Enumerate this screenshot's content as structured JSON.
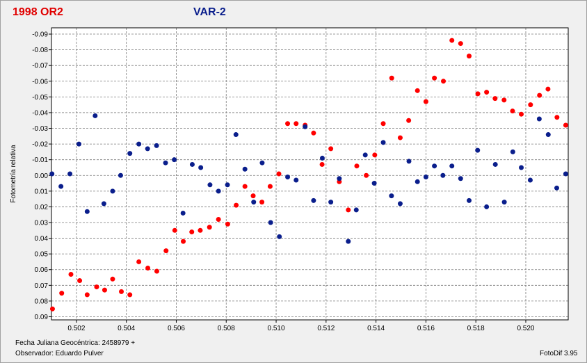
{
  "header": {
    "title_left": "1998 OR2",
    "title_right": "VAR-2"
  },
  "footer": {
    "jd_label": "Fecha Juliana Geocéntrica: 2458979 +",
    "observer": "Observador: Eduardo Pulver",
    "software": "FotoDif 3.95"
  },
  "chart_data": {
    "type": "scatter",
    "ylabel": "Fotometría relativa",
    "xlabel": "",
    "xlim": [
      0.501,
      0.5217
    ],
    "ylim": [
      0.092,
      -0.094
    ],
    "y_inverted": true,
    "grid": true,
    "x_ticks": [
      0.502,
      0.504,
      0.506,
      0.508,
      0.51,
      0.512,
      0.514,
      0.516,
      0.518,
      0.52
    ],
    "x_tick_labels": [
      "0.502",
      "0.504",
      "0.506",
      "0.508",
      "0.510",
      "0.512",
      "0.514",
      "0.516",
      "0.518",
      "0.520"
    ],
    "y_ticks": [
      -0.09,
      -0.08,
      -0.07,
      -0.06,
      -0.05,
      -0.04,
      -0.03,
      -0.02,
      -0.01,
      0.0,
      0.01,
      0.02,
      0.03,
      0.04,
      0.05,
      0.06,
      0.07,
      0.08,
      0.09
    ],
    "y_tick_labels": [
      "-0.09",
      "-0.08",
      "-0.07",
      "-0.06",
      "-0.05",
      "-0.04",
      "-0.03",
      "-0.02",
      "-0.01",
      "0.00",
      "0.01",
      "0.02",
      "0.03",
      "0.04",
      "0.05",
      "0.06",
      "0.07",
      "0.08",
      "0.09"
    ],
    "series": [
      {
        "color": "#ff0000",
        "points": [
          [
            0.50104,
            0.085
          ],
          [
            0.50141,
            0.075
          ],
          [
            0.50178,
            0.063
          ],
          [
            0.50213,
            0.067
          ],
          [
            0.50243,
            0.076
          ],
          [
            0.50281,
            0.071
          ],
          [
            0.50313,
            0.073
          ],
          [
            0.50345,
            0.066
          ],
          [
            0.5038,
            0.074
          ],
          [
            0.50414,
            0.076
          ],
          [
            0.5045,
            0.055
          ],
          [
            0.50486,
            0.059
          ],
          [
            0.50522,
            0.061
          ],
          [
            0.50559,
            0.048
          ],
          [
            0.50594,
            0.035
          ],
          [
            0.50628,
            0.042
          ],
          [
            0.50662,
            0.036
          ],
          [
            0.50696,
            0.035
          ],
          [
            0.50733,
            0.033
          ],
          [
            0.50769,
            0.028
          ],
          [
            0.50806,
            0.031
          ],
          [
            0.5084,
            0.019
          ],
          [
            0.50875,
            0.007
          ],
          [
            0.50908,
            0.013
          ],
          [
            0.50943,
            0.017
          ],
          [
            0.50976,
            0.007
          ],
          [
            0.51011,
            -0.001
          ],
          [
            0.51046,
            -0.033
          ],
          [
            0.5108,
            -0.033
          ],
          [
            0.51116,
            -0.032
          ],
          [
            0.5115,
            -0.027
          ],
          [
            0.51184,
            -0.007
          ],
          [
            0.51219,
            -0.017
          ],
          [
            0.51253,
            0.004
          ],
          [
            0.51289,
            0.022
          ],
          [
            0.51323,
            -0.006
          ],
          [
            0.51361,
            0.0
          ],
          [
            0.51395,
            -0.013
          ],
          [
            0.51429,
            -0.033
          ],
          [
            0.51463,
            -0.062
          ],
          [
            0.51497,
            -0.024
          ],
          [
            0.51531,
            -0.035
          ],
          [
            0.51566,
            -0.054
          ],
          [
            0.516,
            -0.047
          ],
          [
            0.51634,
            -0.062
          ],
          [
            0.5167,
            -0.06
          ],
          [
            0.51704,
            -0.086
          ],
          [
            0.51739,
            -0.084
          ],
          [
            0.51773,
            -0.076
          ],
          [
            0.51808,
            -0.052
          ],
          [
            0.51843,
            -0.053
          ],
          [
            0.51877,
            -0.049
          ],
          [
            0.51913,
            -0.048
          ],
          [
            0.51947,
            -0.041
          ],
          [
            0.51982,
            -0.039
          ],
          [
            0.52019,
            -0.045
          ],
          [
            0.52055,
            -0.051
          ],
          [
            0.52089,
            -0.055
          ],
          [
            0.52125,
            -0.037
          ],
          [
            0.5216,
            -0.032
          ]
        ]
      },
      {
        "color": "#0a1e8c",
        "points": [
          [
            0.50102,
            -0.001
          ],
          [
            0.50138,
            0.007
          ],
          [
            0.50174,
            -0.001
          ],
          [
            0.5021,
            -0.02
          ],
          [
            0.50243,
            0.023
          ],
          [
            0.50275,
            -0.038
          ],
          [
            0.5031,
            0.018
          ],
          [
            0.50345,
            0.01
          ],
          [
            0.50377,
            0.0
          ],
          [
            0.50414,
            -0.014
          ],
          [
            0.5045,
            -0.02
          ],
          [
            0.50485,
            -0.017
          ],
          [
            0.50521,
            -0.019
          ],
          [
            0.50557,
            -0.008
          ],
          [
            0.50592,
            -0.01
          ],
          [
            0.50627,
            0.024
          ],
          [
            0.50664,
            -0.007
          ],
          [
            0.50698,
            -0.005
          ],
          [
            0.50735,
            0.006
          ],
          [
            0.50769,
            0.01
          ],
          [
            0.50805,
            0.006
          ],
          [
            0.50839,
            -0.026
          ],
          [
            0.50875,
            -0.004
          ],
          [
            0.5091,
            0.017
          ],
          [
            0.50944,
            -0.008
          ],
          [
            0.50978,
            0.03
          ],
          [
            0.51013,
            0.039
          ],
          [
            0.51046,
            0.001
          ],
          [
            0.5108,
            0.003
          ],
          [
            0.51116,
            -0.031
          ],
          [
            0.5115,
            0.016
          ],
          [
            0.51185,
            -0.011
          ],
          [
            0.51219,
            0.017
          ],
          [
            0.51253,
            0.002
          ],
          [
            0.51289,
            0.042
          ],
          [
            0.51321,
            0.022
          ],
          [
            0.51357,
            -0.013
          ],
          [
            0.51393,
            0.005
          ],
          [
            0.51429,
            -0.021
          ],
          [
            0.51462,
            0.013
          ],
          [
            0.51497,
            0.018
          ],
          [
            0.51532,
            -0.009
          ],
          [
            0.51566,
            0.004
          ],
          [
            0.516,
            0.001
          ],
          [
            0.51634,
            -0.006
          ],
          [
            0.51668,
            0.0
          ],
          [
            0.51704,
            -0.006
          ],
          [
            0.51739,
            0.002
          ],
          [
            0.51773,
            0.016
          ],
          [
            0.51807,
            -0.016
          ],
          [
            0.51843,
            0.02
          ],
          [
            0.51878,
            -0.007
          ],
          [
            0.51914,
            0.017
          ],
          [
            0.51948,
            -0.015
          ],
          [
            0.51982,
            -0.005
          ],
          [
            0.52018,
            0.003
          ],
          [
            0.52054,
            -0.036
          ],
          [
            0.5209,
            -0.026
          ],
          [
            0.52124,
            0.008
          ],
          [
            0.5216,
            -0.001
          ]
        ]
      }
    ]
  }
}
